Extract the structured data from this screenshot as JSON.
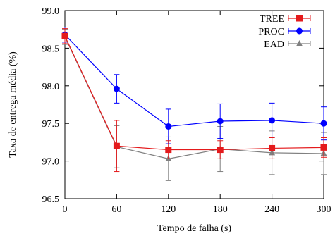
{
  "chart_data": {
    "type": "line",
    "title": "",
    "xlabel": "Tempo de falha (s)",
    "ylabel": "Taxa de entrega média (%)",
    "x": [
      0,
      60,
      120,
      180,
      240,
      300
    ],
    "xlim": [
      0,
      300
    ],
    "ylim": [
      96.5,
      99.0
    ],
    "xticks": [
      0,
      60,
      120,
      180,
      240,
      300
    ],
    "yticks": [
      96.5,
      97.0,
      97.5,
      98.0,
      98.5,
      99.0
    ],
    "ytick_labels": [
      "96.5",
      "97.0",
      "97.5",
      "98.0",
      "98.5",
      "99.0"
    ],
    "grid": false,
    "legend_position": "top-right",
    "series": [
      {
        "name": "TREE",
        "color": "#e41a1c",
        "marker": "square",
        "values": [
          98.66,
          97.2,
          97.15,
          97.15,
          97.17,
          97.18
        ],
        "errors": [
          0.1,
          0.34,
          0.12,
          0.12,
          0.14,
          0.13
        ]
      },
      {
        "name": "PROC",
        "color": "#0000ff",
        "marker": "circle",
        "values": [
          98.68,
          97.96,
          97.46,
          97.53,
          97.54,
          97.5
        ],
        "errors": [
          0.1,
          0.19,
          0.23,
          0.23,
          0.23,
          0.22
        ]
      },
      {
        "name": "EAD",
        "color": "#808080",
        "marker": "triangle",
        "values": [
          98.65,
          97.19,
          97.03,
          97.16,
          97.11,
          97.1
        ],
        "errors": [
          0.1,
          0.28,
          0.29,
          0.3,
          0.29,
          0.28
        ]
      }
    ]
  }
}
